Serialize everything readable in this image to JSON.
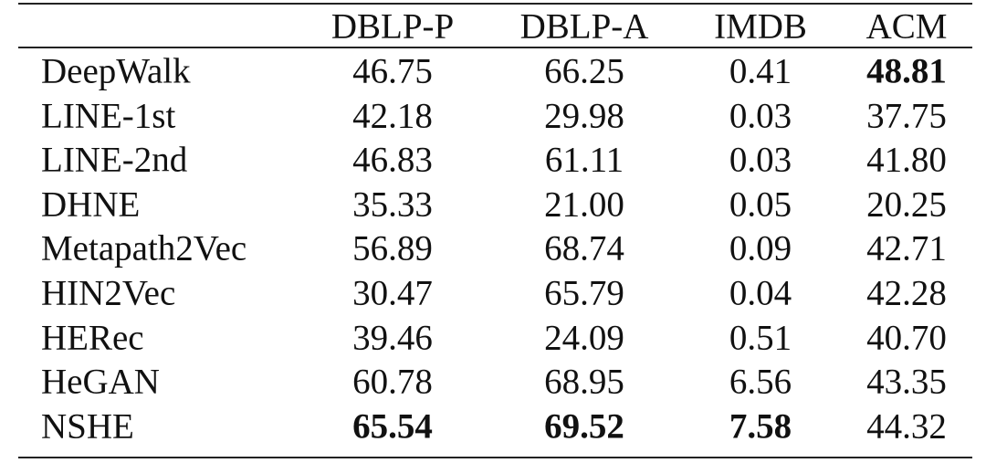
{
  "table": {
    "header": [
      "DBLP-P",
      "DBLP-A",
      "IMDB",
      "ACM"
    ],
    "rows": [
      {
        "label": "DeepWalk",
        "cells": [
          "46.75",
          "66.25",
          "0.41",
          "48.81"
        ]
      },
      {
        "label": "LINE-1st",
        "cells": [
          "42.18",
          "29.98",
          "0.03",
          "37.75"
        ]
      },
      {
        "label": "LINE-2nd",
        "cells": [
          "46.83",
          "61.11",
          "0.03",
          "41.80"
        ]
      },
      {
        "label": "DHNE",
        "cells": [
          "35.33",
          "21.00",
          "0.05",
          "20.25"
        ]
      },
      {
        "label": "Metapath2Vec",
        "cells": [
          "56.89",
          "68.74",
          "0.09",
          "42.71"
        ]
      },
      {
        "label": "HIN2Vec",
        "cells": [
          "30.47",
          "65.79",
          "0.04",
          "42.28"
        ]
      },
      {
        "label": "HERec",
        "cells": [
          "39.46",
          "24.09",
          "0.51",
          "40.70"
        ]
      },
      {
        "label": "HeGAN",
        "cells": [
          "60.78",
          "68.95",
          "6.56",
          "43.35"
        ]
      },
      {
        "label": "NSHE",
        "cells": [
          "65.54",
          "69.52",
          "7.58",
          "44.32"
        ]
      }
    ],
    "bold": [
      [
        0,
        3
      ],
      [
        8,
        0
      ],
      [
        8,
        1
      ],
      [
        8,
        2
      ]
    ]
  }
}
